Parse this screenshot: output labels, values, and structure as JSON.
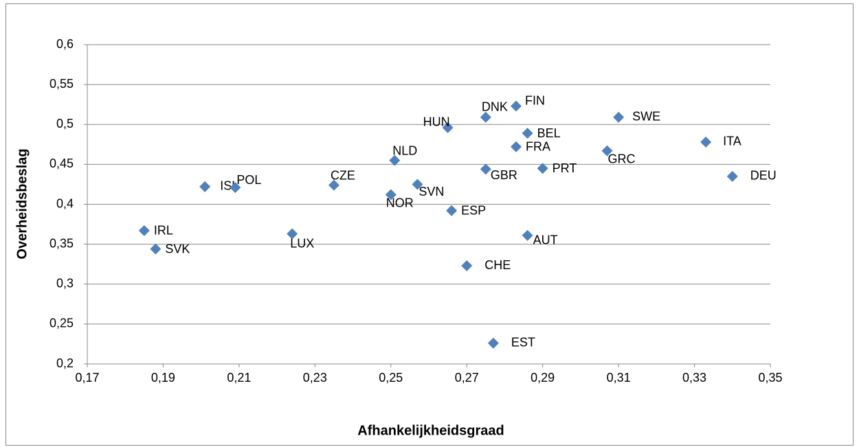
{
  "chart_data": {
    "type": "scatter",
    "x_label": "Afhankelijkheidsgraad",
    "y_label": "Overheidsbeslag",
    "xlim": [
      0.17,
      0.35
    ],
    "xticks": [
      {
        "value": 0.17,
        "label": "0,17"
      },
      {
        "value": 0.19,
        "label": "0,19"
      },
      {
        "value": 0.21,
        "label": "0,21"
      },
      {
        "value": 0.23,
        "label": "0,23"
      },
      {
        "value": 0.25,
        "label": "0,25"
      },
      {
        "value": 0.27,
        "label": "0,27"
      },
      {
        "value": 0.29,
        "label": "0,29"
      },
      {
        "value": 0.31,
        "label": "0,31"
      },
      {
        "value": 0.33,
        "label": "0,33"
      },
      {
        "value": 0.35,
        "label": "0,35"
      }
    ],
    "ylim": [
      0.2,
      0.6
    ],
    "yticks": [
      {
        "value": 0.2,
        "label": "0,2"
      },
      {
        "value": 0.25,
        "label": "0,25"
      },
      {
        "value": 0.3,
        "label": "0,3"
      },
      {
        "value": 0.35,
        "label": "0,35"
      },
      {
        "value": 0.4,
        "label": "0,4"
      },
      {
        "value": 0.45,
        "label": "0,45"
      },
      {
        "value": 0.5,
        "label": "0,5"
      },
      {
        "value": 0.55,
        "label": "0,55"
      },
      {
        "value": 0.6,
        "label": "0,6"
      }
    ],
    "grid": true,
    "series": [
      {
        "color": "#4f81bd",
        "labels": [
          "IRL",
          "SVK",
          "ISL",
          "POL",
          "LUX",
          "CZE",
          "NLD",
          "NOR",
          "SVN",
          "ESP",
          "HUN",
          "DNK",
          "FIN",
          "BEL",
          "FRA",
          "GBR",
          "PRT",
          "AUT",
          "CHE",
          "EST",
          "GRC",
          "SWE",
          "ITA",
          "DEU"
        ],
        "x": [
          0.185,
          0.188,
          0.201,
          0.209,
          0.224,
          0.235,
          0.251,
          0.25,
          0.257,
          0.266,
          0.265,
          0.275,
          0.283,
          0.286,
          0.283,
          0.275,
          0.29,
          0.286,
          0.27,
          0.277,
          0.307,
          0.31,
          0.333,
          0.34
        ],
        "values": [
          0.367,
          0.344,
          0.422,
          0.421,
          0.363,
          0.424,
          0.455,
          0.412,
          0.425,
          0.392,
          0.496,
          0.509,
          0.523,
          0.489,
          0.472,
          0.444,
          0.445,
          0.361,
          0.323,
          0.226,
          0.467,
          0.509,
          0.478,
          0.435
        ]
      }
    ]
  }
}
